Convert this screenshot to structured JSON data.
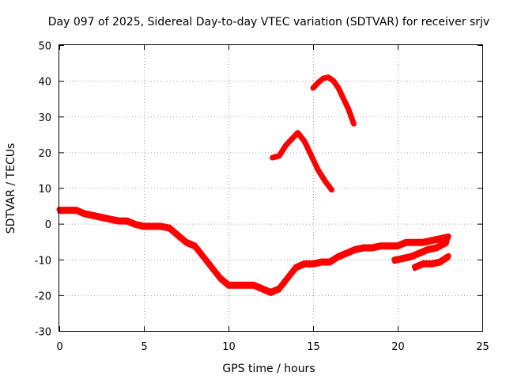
{
  "chart_data": {
    "type": "line",
    "title": "Day 097 of 2025, Sidereal Day-to-day VTEC variation (SDTVAR) for receiver srjv",
    "xlabel": "GPS time / hours",
    "ylabel": "SDTVAR / TECUs",
    "xlim": [
      0,
      25
    ],
    "ylim": [
      -30,
      50
    ],
    "xticks": [
      0,
      5,
      10,
      15,
      20,
      25
    ],
    "yticks": [
      -30,
      -20,
      -10,
      0,
      10,
      20,
      30,
      40,
      50
    ],
    "grid": true,
    "color": "#ff0000",
    "series": [
      {
        "name": "main-trace",
        "x": [
          0.0,
          0.5,
          1.0,
          1.5,
          2.0,
          2.5,
          3.0,
          3.5,
          4.0,
          4.5,
          5.0,
          5.5,
          6.0,
          6.5,
          7.0,
          7.5,
          8.0,
          8.5,
          9.0,
          9.5,
          10.0,
          10.5,
          11.0,
          11.5,
          12.0,
          12.5,
          13.0,
          13.5,
          14.0,
          14.5,
          15.0,
          15.5,
          16.0,
          16.5,
          17.0,
          17.5,
          18.0,
          18.5,
          19.0,
          19.5
        ],
        "values": [
          4,
          4,
          4,
          3,
          2.5,
          2,
          1.5,
          1,
          1,
          0,
          -0.5,
          -0.5,
          -0.5,
          -1,
          -3,
          -5,
          -6,
          -9,
          -12,
          -15,
          -17,
          -17,
          -17,
          -17,
          -18,
          -19,
          -18,
          -15,
          -12,
          -11,
          -11,
          -10.5,
          -10.5,
          -9,
          -8,
          -7,
          -6.5,
          -6.5,
          -6,
          -6
        ]
      },
      {
        "name": "late-segment-a",
        "x": [
          19.5,
          20.0,
          20.5,
          21.0,
          21.5,
          22.0,
          22.5,
          23.0
        ],
        "values": [
          -6,
          -6,
          -5,
          -5,
          -5,
          -4.5,
          -4,
          -3.5
        ]
      },
      {
        "name": "late-segment-b",
        "x": [
          19.8,
          20.3,
          20.8,
          21.3,
          21.8,
          22.3,
          22.9
        ],
        "values": [
          -10,
          -9.5,
          -9,
          -8,
          -7,
          -6.5,
          -5
        ]
      },
      {
        "name": "late-segment-c",
        "x": [
          21.0,
          21.5,
          22.0,
          22.5,
          23.0
        ],
        "values": [
          -12,
          -11,
          -11,
          -10.5,
          -9
        ]
      },
      {
        "name": "arc-upper",
        "x": [
          15.0,
          15.3,
          15.6,
          15.9,
          16.2,
          16.5,
          16.8,
          17.1,
          17.4
        ],
        "values": [
          38,
          39.5,
          40.7,
          41,
          40,
          38,
          35,
          32,
          28
        ]
      },
      {
        "name": "arc-middle",
        "x": [
          12.6,
          13.0,
          13.4,
          13.8,
          14.1,
          14.5,
          14.9,
          15.3,
          15.7,
          16.1
        ],
        "values": [
          18.5,
          19,
          22,
          24,
          25.5,
          23,
          19,
          15,
          12,
          9.5
        ]
      }
    ]
  }
}
